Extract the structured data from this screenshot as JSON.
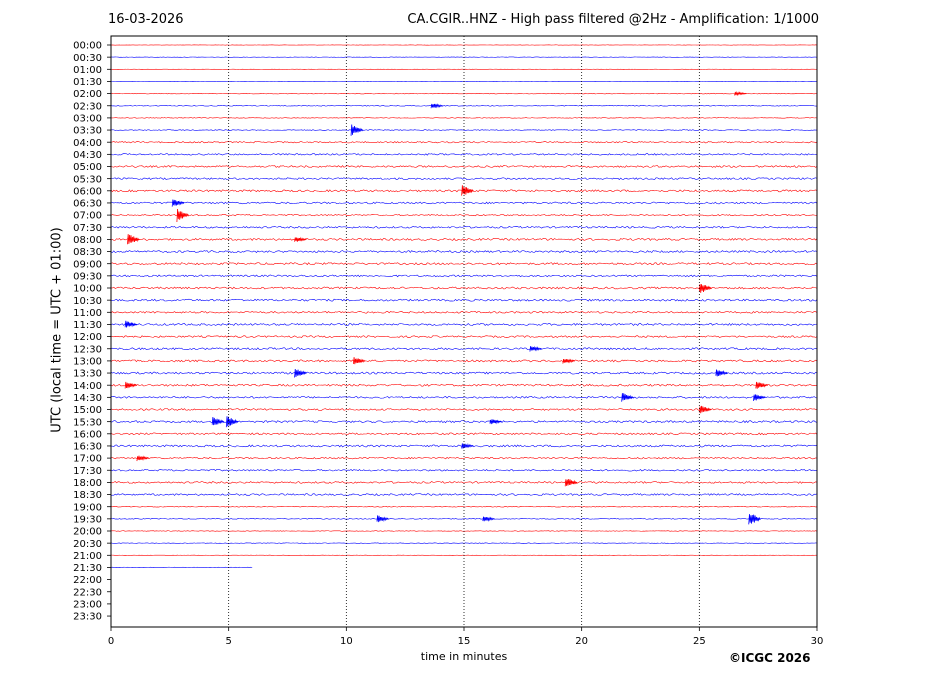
{
  "header": {
    "date": "16-03-2026",
    "title": "CA.CGIR..HNZ - High pass filtered @2Hz - Amplification: 1/1000"
  },
  "footer": {
    "copyright": "©ICGC 2026"
  },
  "colors": {
    "odd_trace": "#ff0000",
    "even_trace": "#0000ff",
    "grid": "#000000"
  },
  "chart_data": {
    "type": "line",
    "subtype": "helicorder",
    "xlabel": "time in minutes",
    "ylabel": "UTC (local time = UTC + 01:00)",
    "xlim": [
      0,
      30
    ],
    "x_ticks": [
      0,
      5,
      10,
      15,
      20,
      25,
      30
    ],
    "vertical_gridlines": [
      5,
      10,
      15,
      20,
      25
    ],
    "rows": [
      "00:00",
      "00:30",
      "01:00",
      "01:30",
      "02:00",
      "02:30",
      "03:00",
      "03:30",
      "04:00",
      "04:30",
      "05:00",
      "05:30",
      "06:00",
      "06:30",
      "07:00",
      "07:30",
      "08:00",
      "08:30",
      "09:00",
      "09:30",
      "10:00",
      "10:30",
      "11:00",
      "11:30",
      "12:00",
      "12:30",
      "13:00",
      "13:30",
      "14:00",
      "14:30",
      "15:00",
      "15:30",
      "16:00",
      "16:30",
      "17:00",
      "17:30",
      "18:00",
      "18:30",
      "19:00",
      "19:30",
      "20:00",
      "20:30",
      "21:00",
      "21:30",
      "22:00",
      "22:30",
      "23:00",
      "23:30"
    ],
    "trace_colors": [
      "red",
      "blue"
    ],
    "trace_end": {
      "row": "21:30",
      "minute": 6
    },
    "noise_level": [
      0.15,
      0.2,
      0.15,
      0.2,
      0.35,
      0.4,
      0.3,
      0.4,
      0.7,
      0.8,
      0.9,
      0.9,
      1.0,
      0.9,
      0.7,
      0.9,
      1.0,
      1.0,
      1.0,
      0.9,
      1.0,
      1.0,
      0.9,
      1.0,
      0.9,
      1.0,
      1.0,
      1.0,
      1.0,
      0.9,
      0.9,
      1.0,
      0.9,
      1.0,
      0.8,
      0.8,
      0.9,
      0.9,
      0.4,
      0.4,
      0.3,
      0.3,
      0.2,
      0.3,
      0,
      0,
      0,
      0
    ],
    "events": [
      {
        "row": "02:00",
        "minute": 26.5,
        "amp": 2
      },
      {
        "row": "02:30",
        "minute": 13.6,
        "amp": 3
      },
      {
        "row": "03:30",
        "minute": 10.2,
        "amp": 6
      },
      {
        "row": "06:00",
        "minute": 14.9,
        "amp": 6
      },
      {
        "row": "06:30",
        "minute": 2.6,
        "amp": 4
      },
      {
        "row": "07:00",
        "minute": 2.8,
        "amp": 7
      },
      {
        "row": "08:00",
        "minute": 0.7,
        "amp": 6
      },
      {
        "row": "08:00",
        "minute": 7.8,
        "amp": 3
      },
      {
        "row": "10:00",
        "minute": 25.0,
        "amp": 6
      },
      {
        "row": "11:30",
        "minute": 0.6,
        "amp": 4
      },
      {
        "row": "12:30",
        "minute": 17.8,
        "amp": 3
      },
      {
        "row": "13:00",
        "minute": 10.3,
        "amp": 4
      },
      {
        "row": "13:00",
        "minute": 19.2,
        "amp": 3
      },
      {
        "row": "13:30",
        "minute": 7.8,
        "amp": 5
      },
      {
        "row": "13:30",
        "minute": 25.7,
        "amp": 4
      },
      {
        "row": "14:00",
        "minute": 0.6,
        "amp": 4
      },
      {
        "row": "14:00",
        "minute": 27.4,
        "amp": 4
      },
      {
        "row": "14:30",
        "minute": 21.7,
        "amp": 5
      },
      {
        "row": "14:30",
        "minute": 27.3,
        "amp": 4
      },
      {
        "row": "15:00",
        "minute": 25.0,
        "amp": 5
      },
      {
        "row": "15:30",
        "minute": 4.3,
        "amp": 5
      },
      {
        "row": "15:30",
        "minute": 4.9,
        "amp": 6
      },
      {
        "row": "15:30",
        "minute": 16.1,
        "amp": 3
      },
      {
        "row": "16:30",
        "minute": 14.9,
        "amp": 3
      },
      {
        "row": "17:00",
        "minute": 1.1,
        "amp": 3
      },
      {
        "row": "18:00",
        "minute": 19.3,
        "amp": 5
      },
      {
        "row": "19:30",
        "minute": 11.3,
        "amp": 4
      },
      {
        "row": "19:30",
        "minute": 15.8,
        "amp": 3
      },
      {
        "row": "19:30",
        "minute": 27.1,
        "amp": 7
      }
    ]
  }
}
